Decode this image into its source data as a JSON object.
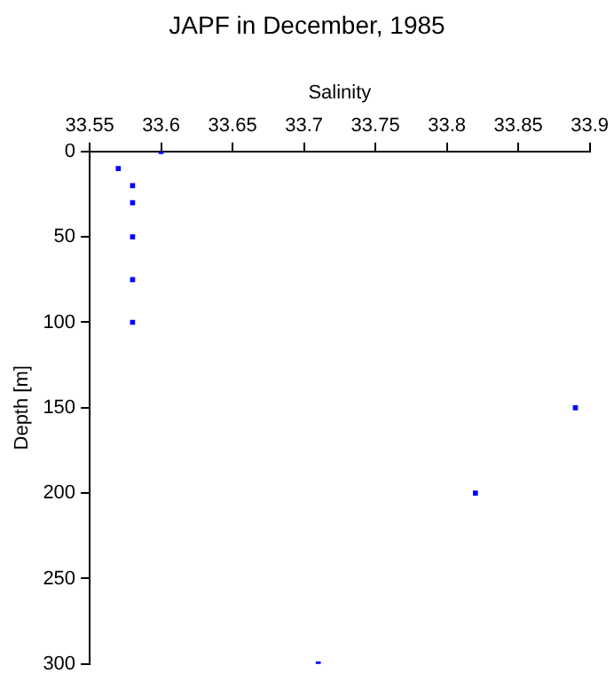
{
  "chart_data": {
    "type": "scatter",
    "title": "JAPF in December, 1985",
    "xlabel": "Salinity",
    "ylabel": "Depth [m]",
    "x": [
      33.6,
      33.57,
      33.58,
      33.58,
      33.58,
      33.58,
      33.58,
      33.89,
      33.82,
      33.71
    ],
    "series": [
      {
        "color": "#0000ff",
        "values": [
          0,
          10,
          20,
          30,
          50,
          75,
          100,
          150,
          200,
          300
        ]
      }
    ],
    "xlim": [
      33.55,
      33.9
    ],
    "xticks": [
      {
        "value": 33.55,
        "label": "33.55"
      },
      {
        "value": 33.6,
        "label": "33.6"
      },
      {
        "value": 33.65,
        "label": "33.65"
      },
      {
        "value": 33.7,
        "label": "33.7"
      },
      {
        "value": 33.75,
        "label": "33.75"
      },
      {
        "value": 33.8,
        "label": "33.8"
      },
      {
        "value": 33.85,
        "label": "33.85"
      },
      {
        "value": 33.9,
        "label": "33.9"
      }
    ],
    "ylim": [
      300,
      0
    ],
    "yticks": [
      0,
      50,
      100,
      150,
      200,
      250,
      300
    ],
    "grid": false,
    "legend": false,
    "marker": "square"
  }
}
